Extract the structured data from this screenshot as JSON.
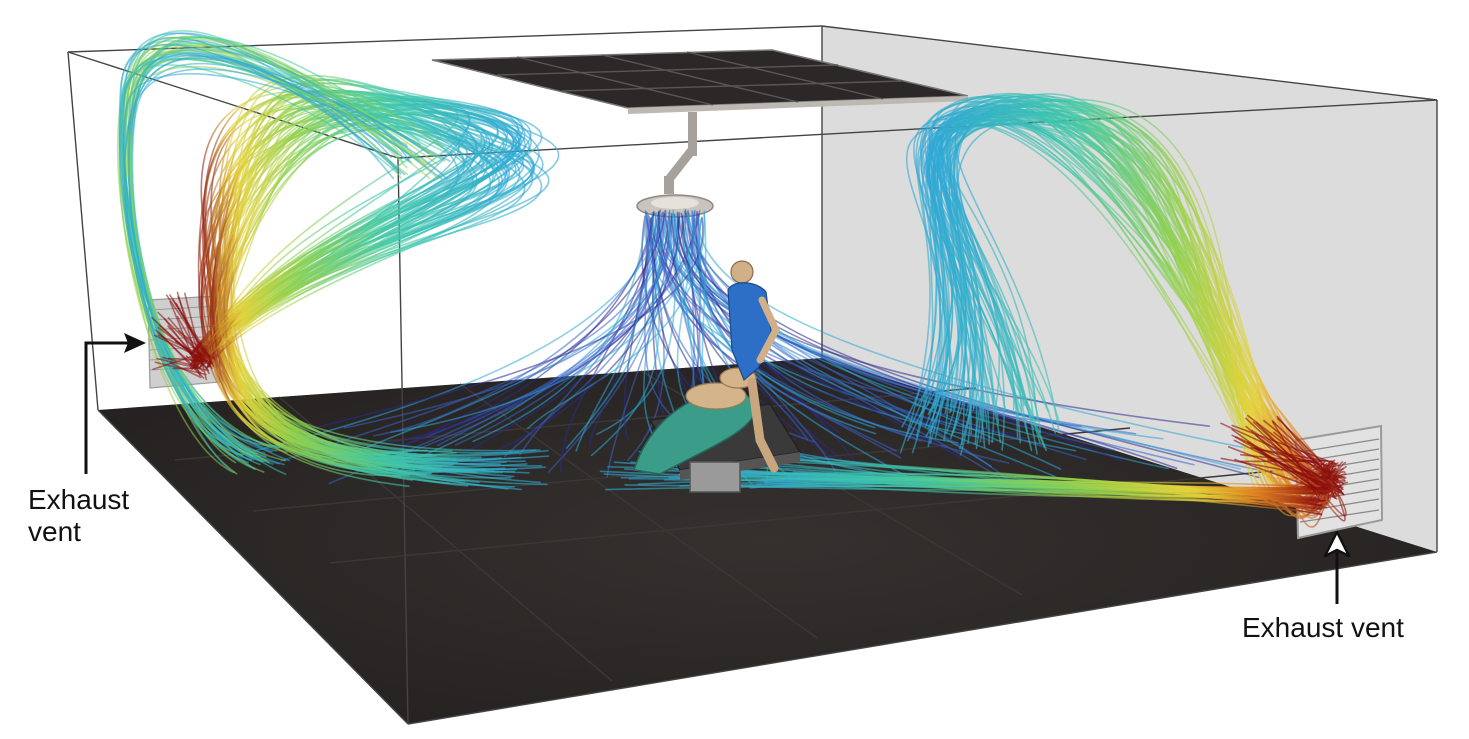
{
  "labels": {
    "left_line1": "Exhaust",
    "left_line2": "vent",
    "right": "Exhaust vent"
  },
  "colors": {
    "floor": "#2b2827",
    "right_wall": "#dcdcdc",
    "room_edge": "#444444",
    "streamline_scale": [
      "#2c2b8f",
      "#3a62c9",
      "#2ea7d6",
      "#3fc8a8",
      "#8fd14f",
      "#e7d23a",
      "#e0801f",
      "#8b0d0d"
    ]
  }
}
